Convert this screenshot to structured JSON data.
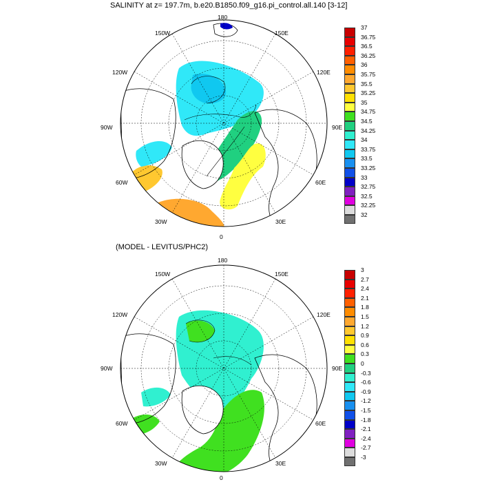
{
  "panels": [
    {
      "title": "SALINITY at z= 197.7m, b.e20.B1850.f09_g16.pi_control.all.140 [3-12]",
      "lon_labels": [
        "180",
        "150E",
        "120E",
        "90E",
        "60E",
        "30E",
        "0",
        "30W",
        "60W",
        "90W",
        "120W",
        "150W"
      ],
      "colorbar": {
        "labels": [
          "37",
          "36.75",
          "36.5",
          "36.25",
          "36",
          "35.75",
          "35.5",
          "35.25",
          "35",
          "34.75",
          "34.5",
          "34.25",
          "34",
          "33.75",
          "33.5",
          "33.25",
          "33",
          "32.75",
          "32.5",
          "32.25",
          "32"
        ],
        "colors": [
          "#c80000",
          "#e80000",
          "#ff2000",
          "#ff6000",
          "#ff8c00",
          "#ffa830",
          "#ffc830",
          "#ffe000",
          "#ffff40",
          "#40e020",
          "#20d080",
          "#30f0d0",
          "#30e8f8",
          "#10c8f0",
          "#1890f0",
          "#1050e8",
          "#0000c8",
          "#8020c0",
          "#e000e0",
          "#dcdcdc",
          "#707070"
        ]
      }
    },
    {
      "title": "(MODEL - LEVITUS/PHC2)",
      "lon_labels": [
        "180",
        "150E",
        "120E",
        "90E",
        "60E",
        "30E",
        "0",
        "30W",
        "60W",
        "90W",
        "120W",
        "150W"
      ],
      "colorbar": {
        "labels": [
          "3",
          "2.7",
          "2.4",
          "2.1",
          "1.8",
          "1.5",
          "1.2",
          "0.9",
          "0.6",
          "0.3",
          "0",
          "-0.3",
          "-0.6",
          "-0.9",
          "-1.2",
          "-1.5",
          "-1.8",
          "-2.1",
          "-2.4",
          "-2.7",
          "-3"
        ],
        "colors": [
          "#c80000",
          "#e80000",
          "#ff2000",
          "#ff6000",
          "#ff8c00",
          "#ffa830",
          "#ffc830",
          "#ffe000",
          "#ffff40",
          "#40e020",
          "#20d080",
          "#30f0d0",
          "#30e8f8",
          "#10c8f0",
          "#1890f0",
          "#1050e8",
          "#0000c8",
          "#8020c0",
          "#e000e0",
          "#dcdcdc",
          "#707070"
        ]
      }
    }
  ]
}
